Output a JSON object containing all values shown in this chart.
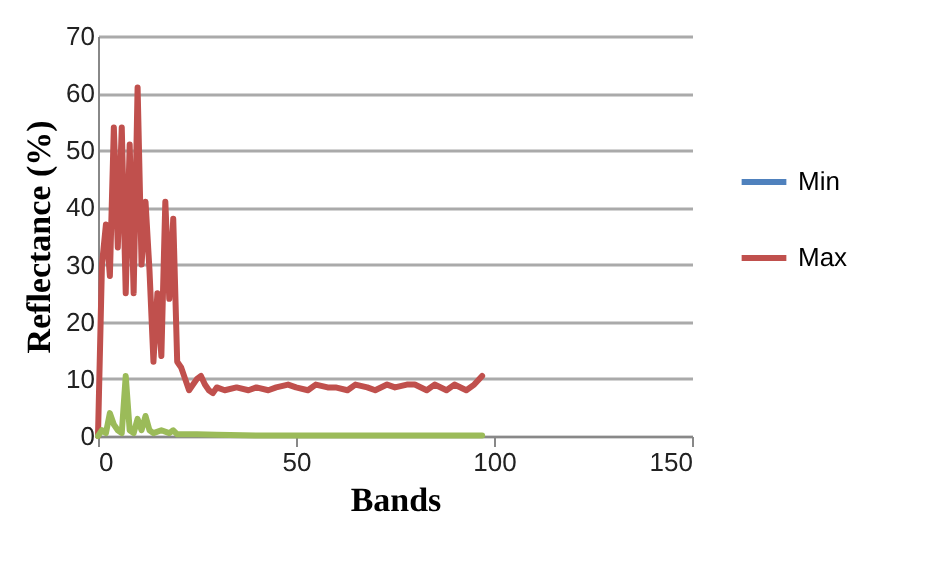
{
  "chart_data": {
    "type": "line",
    "xlabel": "Bands",
    "ylabel": "Reflectance (%)",
    "xlim": [
      0,
      150
    ],
    "xticks": [
      0,
      50,
      100,
      150
    ],
    "ylim": [
      0,
      70
    ],
    "yticks": [
      0,
      10,
      20,
      30,
      40,
      50,
      60,
      70
    ],
    "grid": "y",
    "legend": "right",
    "series": [
      {
        "name": "Min",
        "color": "#4f81bd"
      },
      {
        "name": "Max",
        "color": "#c0504d",
        "x": [
          0,
          1,
          2,
          3,
          4,
          5,
          6,
          7,
          8,
          9,
          10,
          11,
          12,
          13,
          14,
          15,
          16,
          17,
          18,
          19,
          20,
          21,
          22,
          23,
          24,
          25,
          26,
          27,
          28,
          29,
          30,
          32,
          35,
          38,
          40,
          43,
          45,
          48,
          50,
          53,
          55,
          58,
          60,
          63,
          65,
          68,
          70,
          73,
          75,
          78,
          80,
          83,
          85,
          88,
          90,
          93,
          95,
          97
        ],
        "values": [
          0,
          30,
          37,
          28,
          54,
          33,
          54,
          25,
          51,
          25,
          61,
          30,
          41,
          29,
          13,
          25,
          14,
          41,
          24,
          38,
          13,
          12,
          10,
          8,
          9,
          10,
          10.5,
          9,
          8,
          7.5,
          8.5,
          8,
          8.5,
          8,
          8.5,
          8,
          8.5,
          9,
          8.5,
          8,
          9,
          8.5,
          8.5,
          8,
          9,
          8.5,
          8,
          9,
          8.5,
          9,
          9,
          8,
          9,
          8,
          9,
          8,
          9,
          10.5
        ]
      },
      {
        "color": "#9bbb59",
        "x": [
          0,
          1,
          2,
          3,
          4,
          5,
          6,
          7,
          8,
          9,
          10,
          11,
          12,
          13,
          14,
          16,
          18,
          19,
          20,
          25,
          30,
          40,
          50,
          97
        ],
        "values": [
          0,
          1,
          0.5,
          4,
          2,
          1,
          0.5,
          10.5,
          1,
          0.5,
          3,
          1,
          3.5,
          1,
          0.5,
          1,
          0.5,
          1,
          0.3,
          0.3,
          0.2,
          0.1,
          0.1,
          0.1
        ]
      }
    ]
  }
}
